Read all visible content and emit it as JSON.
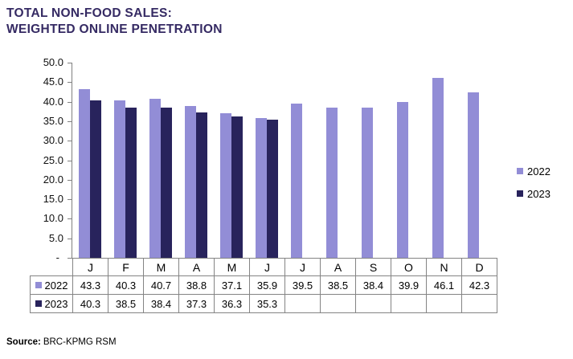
{
  "title": {
    "line1": "TOTAL NON-FOOD SALES:",
    "line2": "WEIGHTED ONLINE PENETRATION"
  },
  "source": {
    "label": "Source:",
    "text": "BRC-KPMG RSM"
  },
  "colors": {
    "series_2022": "#928DD6",
    "series_2023": "#28235C",
    "title_text": "#352A63",
    "axis_and_table_border": "#848484"
  },
  "chart_data": {
    "type": "bar",
    "title": "TOTAL NON-FOOD SALES: WEIGHTED ONLINE PENETRATION",
    "categories": [
      "J",
      "F",
      "M",
      "A",
      "M",
      "J",
      "J",
      "A",
      "S",
      "O",
      "N",
      "D"
    ],
    "series": [
      {
        "name": "2022",
        "color": "#928DD6",
        "values": [
          43.3,
          40.3,
          40.7,
          38.8,
          37.1,
          35.9,
          39.5,
          38.5,
          38.4,
          39.9,
          46.1,
          42.3
        ]
      },
      {
        "name": "2023",
        "color": "#28235C",
        "values": [
          40.3,
          38.5,
          38.4,
          37.3,
          36.3,
          35.3,
          null,
          null,
          null,
          null,
          null,
          null
        ]
      }
    ],
    "xlabel": "",
    "ylabel": "",
    "ylim": [
      0,
      50
    ],
    "ytick_step": 5,
    "ytick_labels": [
      "-",
      "5.0",
      "10.0",
      "15.0",
      "20.0",
      "25.0",
      "30.0",
      "35.0",
      "40.0",
      "45.0",
      "50.0"
    ],
    "grid": false,
    "legend_position": "right",
    "legend_entries": [
      "2022",
      "2023"
    ],
    "data_table": true
  }
}
